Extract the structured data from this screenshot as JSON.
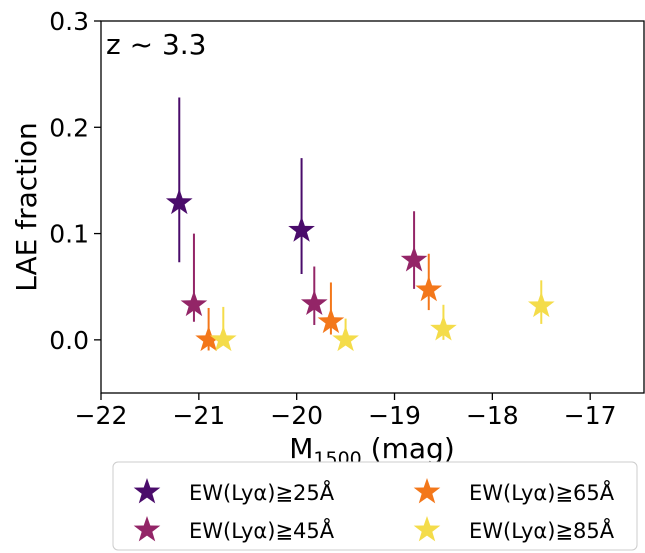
{
  "chart_data": {
    "type": "scatter",
    "annotation": "z ~ 3.3",
    "xlabel": "M1500 (mag)",
    "ylabel": "LAE fraction",
    "xlim": [
      -22,
      -16.45
    ],
    "ylim": [
      -0.05,
      0.3
    ],
    "x_ticks": [
      -22,
      -21,
      -20,
      -19,
      -18,
      -17
    ],
    "y_ticks": [
      0.0,
      0.1,
      0.2,
      0.3
    ],
    "marker": "star",
    "grid": false,
    "legend_placement": "bottom, below axes, 2 columns",
    "series": [
      {
        "name": "EW(Lyα)≧25Å",
        "color": "#4a0c6b",
        "points": [
          {
            "x": -21.2,
            "y": 0.129,
            "ylo": 0.073,
            "yhi": 0.228
          },
          {
            "x": -19.95,
            "y": 0.103,
            "ylo": 0.062,
            "yhi": 0.171
          }
        ]
      },
      {
        "name": "EW(Lyα)≧45Å",
        "color": "#932567",
        "points": [
          {
            "x": -21.05,
            "y": 0.033,
            "ylo": 0.017,
            "yhi": 0.1
          },
          {
            "x": -19.82,
            "y": 0.034,
            "ylo": 0.014,
            "yhi": 0.069
          },
          {
            "x": -18.8,
            "y": 0.075,
            "ylo": 0.048,
            "yhi": 0.121
          }
        ]
      },
      {
        "name": "EW(Lyα)≧65Å",
        "color": "#f3771a",
        "points": [
          {
            "x": -20.9,
            "y": 0.0,
            "ylo": -0.01,
            "yhi": 0.03
          },
          {
            "x": -19.65,
            "y": 0.017,
            "ylo": 0.005,
            "yhi": 0.054
          },
          {
            "x": -18.65,
            "y": 0.047,
            "ylo": 0.028,
            "yhi": 0.081
          }
        ]
      },
      {
        "name": "EW(Lyα)≧85Å",
        "color": "#f4dc4a",
        "points": [
          {
            "x": -20.75,
            "y": 0.0,
            "ylo": -0.005,
            "yhi": 0.031
          },
          {
            "x": -19.5,
            "y": 0.0,
            "ylo": -0.005,
            "yhi": 0.02
          },
          {
            "x": -18.5,
            "y": 0.01,
            "ylo": 0.0,
            "yhi": 0.033
          },
          {
            "x": -17.5,
            "y": 0.032,
            "ylo": 0.015,
            "yhi": 0.056
          }
        ]
      }
    ]
  }
}
